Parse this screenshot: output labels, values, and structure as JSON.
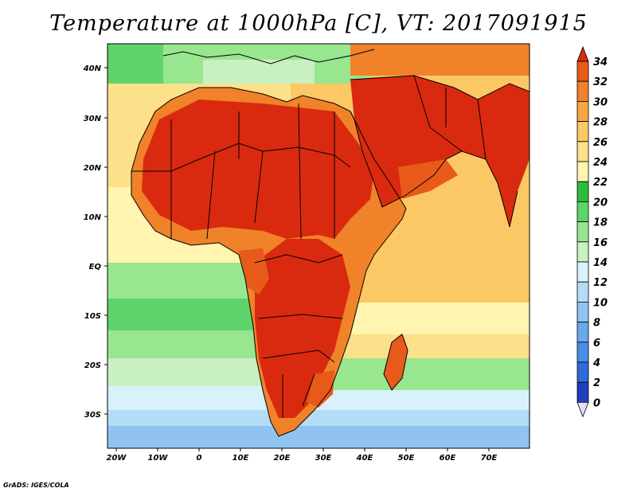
{
  "title": "Temperature at 1000hPa [C], VT: 2017091915",
  "credit": "GrADS: IGES/COLA",
  "map": {
    "lat_ticks": [
      "40N",
      "30N",
      "20N",
      "10N",
      "EQ",
      "10S",
      "20S",
      "30S"
    ],
    "lon_ticks": [
      "20W",
      "10W",
      "0",
      "10E",
      "20E",
      "30E",
      "40E",
      "50E",
      "60E",
      "70E"
    ]
  },
  "colorbar": {
    "labels": [
      "34",
      "32",
      "30",
      "28",
      "26",
      "24",
      "22",
      "20",
      "18",
      "16",
      "14",
      "12",
      "10",
      "8",
      "6",
      "4",
      "2",
      "0"
    ],
    "colors": [
      "#1a0f7a",
      "#1f3fbf",
      "#2f6ad8",
      "#4a8ee6",
      "#6aa8ec",
      "#8fc4f2",
      "#b5dcf7",
      "#d9f1fb",
      "#c8f0c0",
      "#98e68f",
      "#5fd46a",
      "#2dbb3f",
      "#fff4b0",
      "#fde08a",
      "#fbc865",
      "#f7a640",
      "#f0822a",
      "#e85a1a",
      "#d92a10"
    ],
    "top_color": "#d92a10",
    "bottom_color": "#e4e0f6"
  }
}
